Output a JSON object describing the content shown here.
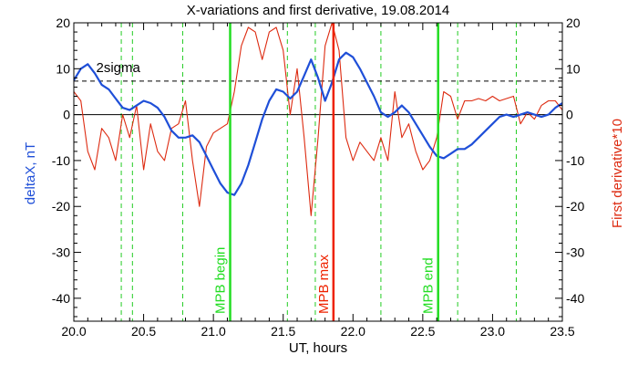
{
  "chart_data": {
    "type": "line",
    "title": "X-variations and first derivative, 19.08.2014",
    "xlabel": "UT, hours",
    "ylabel_left": "deltaX, nT",
    "ylabel_right": "First derivative*10",
    "xlim": [
      20.0,
      23.5
    ],
    "ylim": [
      -45,
      20
    ],
    "x_ticks": [
      "20.0",
      "20.5",
      "21.0",
      "21.5",
      "22.0",
      "22.5",
      "23.0",
      "23.5"
    ],
    "y_ticks_left": [
      "20",
      "10",
      "0",
      "-10",
      "-20",
      "-30",
      "-40"
    ],
    "y_ticks_right": [
      "20",
      "10",
      "0",
      "-10",
      "-20",
      "-30",
      "-40"
    ],
    "y_tick_values": [
      20,
      10,
      0,
      -10,
      -20,
      -30,
      -40
    ],
    "colors": {
      "deltaX": "#1f4fd8",
      "derivative": "#dd2a10",
      "mpb_begin_end": "#22dd22",
      "mpb_max": "#ee2200",
      "dashed_green": "#22cc22",
      "reference": "#000000"
    },
    "reference_lines": [
      {
        "y": 0,
        "style": "solid"
      },
      {
        "y": 7.3,
        "style": "dashed",
        "label": "2sigma"
      }
    ],
    "vertical_markers": [
      {
        "x": 21.12,
        "label": "MPB begin",
        "kind": "solid-green"
      },
      {
        "x": 21.86,
        "label": "MPB max",
        "kind": "solid-red"
      },
      {
        "x": 22.61,
        "label": "MPB end",
        "kind": "solid-green"
      }
    ],
    "dashed_verticals": [
      20.34,
      20.42,
      20.78,
      21.53,
      21.73,
      22.2,
      22.75,
      23.17
    ],
    "series": [
      {
        "key": "deltaX",
        "axis": "left",
        "x": [
          20.0,
          20.05,
          20.1,
          20.15,
          20.2,
          20.25,
          20.3,
          20.35,
          20.4,
          20.45,
          20.5,
          20.55,
          20.6,
          20.65,
          20.7,
          20.75,
          20.8,
          20.85,
          20.9,
          20.95,
          21.0,
          21.05,
          21.1,
          21.15,
          21.2,
          21.25,
          21.3,
          21.35,
          21.4,
          21.45,
          21.5,
          21.55,
          21.6,
          21.65,
          21.7,
          21.75,
          21.8,
          21.85,
          21.9,
          21.95,
          22.0,
          22.05,
          22.1,
          22.15,
          22.2,
          22.25,
          22.3,
          22.35,
          22.4,
          22.45,
          22.5,
          22.55,
          22.6,
          22.65,
          22.7,
          22.75,
          22.8,
          22.85,
          22.9,
          22.95,
          23.0,
          23.05,
          23.1,
          23.15,
          23.2,
          23.25,
          23.3,
          23.35,
          23.4,
          23.45,
          23.5
        ],
        "y": [
          7.5,
          10.0,
          11.0,
          9.0,
          6.5,
          5.5,
          3.5,
          1.5,
          1.0,
          2.0,
          3.0,
          2.5,
          1.5,
          -0.5,
          -3.5,
          -5.0,
          -5.0,
          -4.5,
          -6.0,
          -9.0,
          -12.0,
          -15.0,
          -17.0,
          -17.5,
          -15.0,
          -11.0,
          -6.0,
          -1.0,
          3.0,
          5.5,
          5.0,
          3.5,
          5.0,
          8.5,
          12.0,
          8.0,
          3.0,
          7.0,
          12.0,
          13.5,
          12.5,
          10.0,
          7.0,
          4.0,
          0.5,
          -0.5,
          0.5,
          2.0,
          0.5,
          -2.0,
          -4.5,
          -7.0,
          -9.0,
          -9.5,
          -8.5,
          -7.5,
          -7.5,
          -6.5,
          -5.0,
          -3.5,
          -2.0,
          -0.5,
          0.0,
          -0.5,
          0.0,
          0.5,
          0.0,
          -0.5,
          0.0,
          1.5,
          2.5
        ]
      },
      {
        "key": "derivative",
        "axis": "right",
        "x": [
          20.0,
          20.05,
          20.1,
          20.15,
          20.2,
          20.25,
          20.3,
          20.35,
          20.4,
          20.45,
          20.5,
          20.55,
          20.6,
          20.65,
          20.7,
          20.75,
          20.8,
          20.85,
          20.9,
          20.95,
          21.0,
          21.05,
          21.1,
          21.15,
          21.2,
          21.25,
          21.3,
          21.35,
          21.4,
          21.45,
          21.5,
          21.55,
          21.6,
          21.65,
          21.7,
          21.75,
          21.8,
          21.85,
          21.9,
          21.95,
          22.0,
          22.05,
          22.1,
          22.15,
          22.2,
          22.25,
          22.3,
          22.35,
          22.4,
          22.45,
          22.5,
          22.55,
          22.6,
          22.65,
          22.7,
          22.75,
          22.8,
          22.85,
          22.9,
          22.95,
          23.0,
          23.05,
          23.1,
          23.15,
          23.2,
          23.25,
          23.3,
          23.35,
          23.4,
          23.45,
          23.5
        ],
        "y": [
          5.0,
          3.0,
          -8.0,
          -12.0,
          -3.0,
          -5.0,
          -10.0,
          0.0,
          -5.0,
          2.0,
          -12.0,
          -2.0,
          -8.0,
          -10.0,
          -3.0,
          -2.0,
          3.0,
          -10.0,
          -20.0,
          -7.0,
          -4.0,
          -3.0,
          -2.0,
          5.0,
          15.0,
          19.0,
          18.0,
          12.0,
          18.0,
          19.0,
          14.0,
          0.0,
          10.0,
          -5.0,
          -22.0,
          -5.0,
          15.0,
          20.0,
          14.0,
          -5.0,
          -10.0,
          -6.0,
          -8.0,
          -10.0,
          -5.0,
          -10.0,
          5.0,
          -5.0,
          -2.0,
          -8.0,
          -12.0,
          -10.0,
          -5.0,
          5.0,
          4.0,
          -1.0,
          3.0,
          3.0,
          3.5,
          3.0,
          4.0,
          3.0,
          3.5,
          4.0,
          -2.0,
          0.5,
          -1.0,
          2.0,
          3.0,
          3.0,
          1.0
        ]
      }
    ]
  }
}
